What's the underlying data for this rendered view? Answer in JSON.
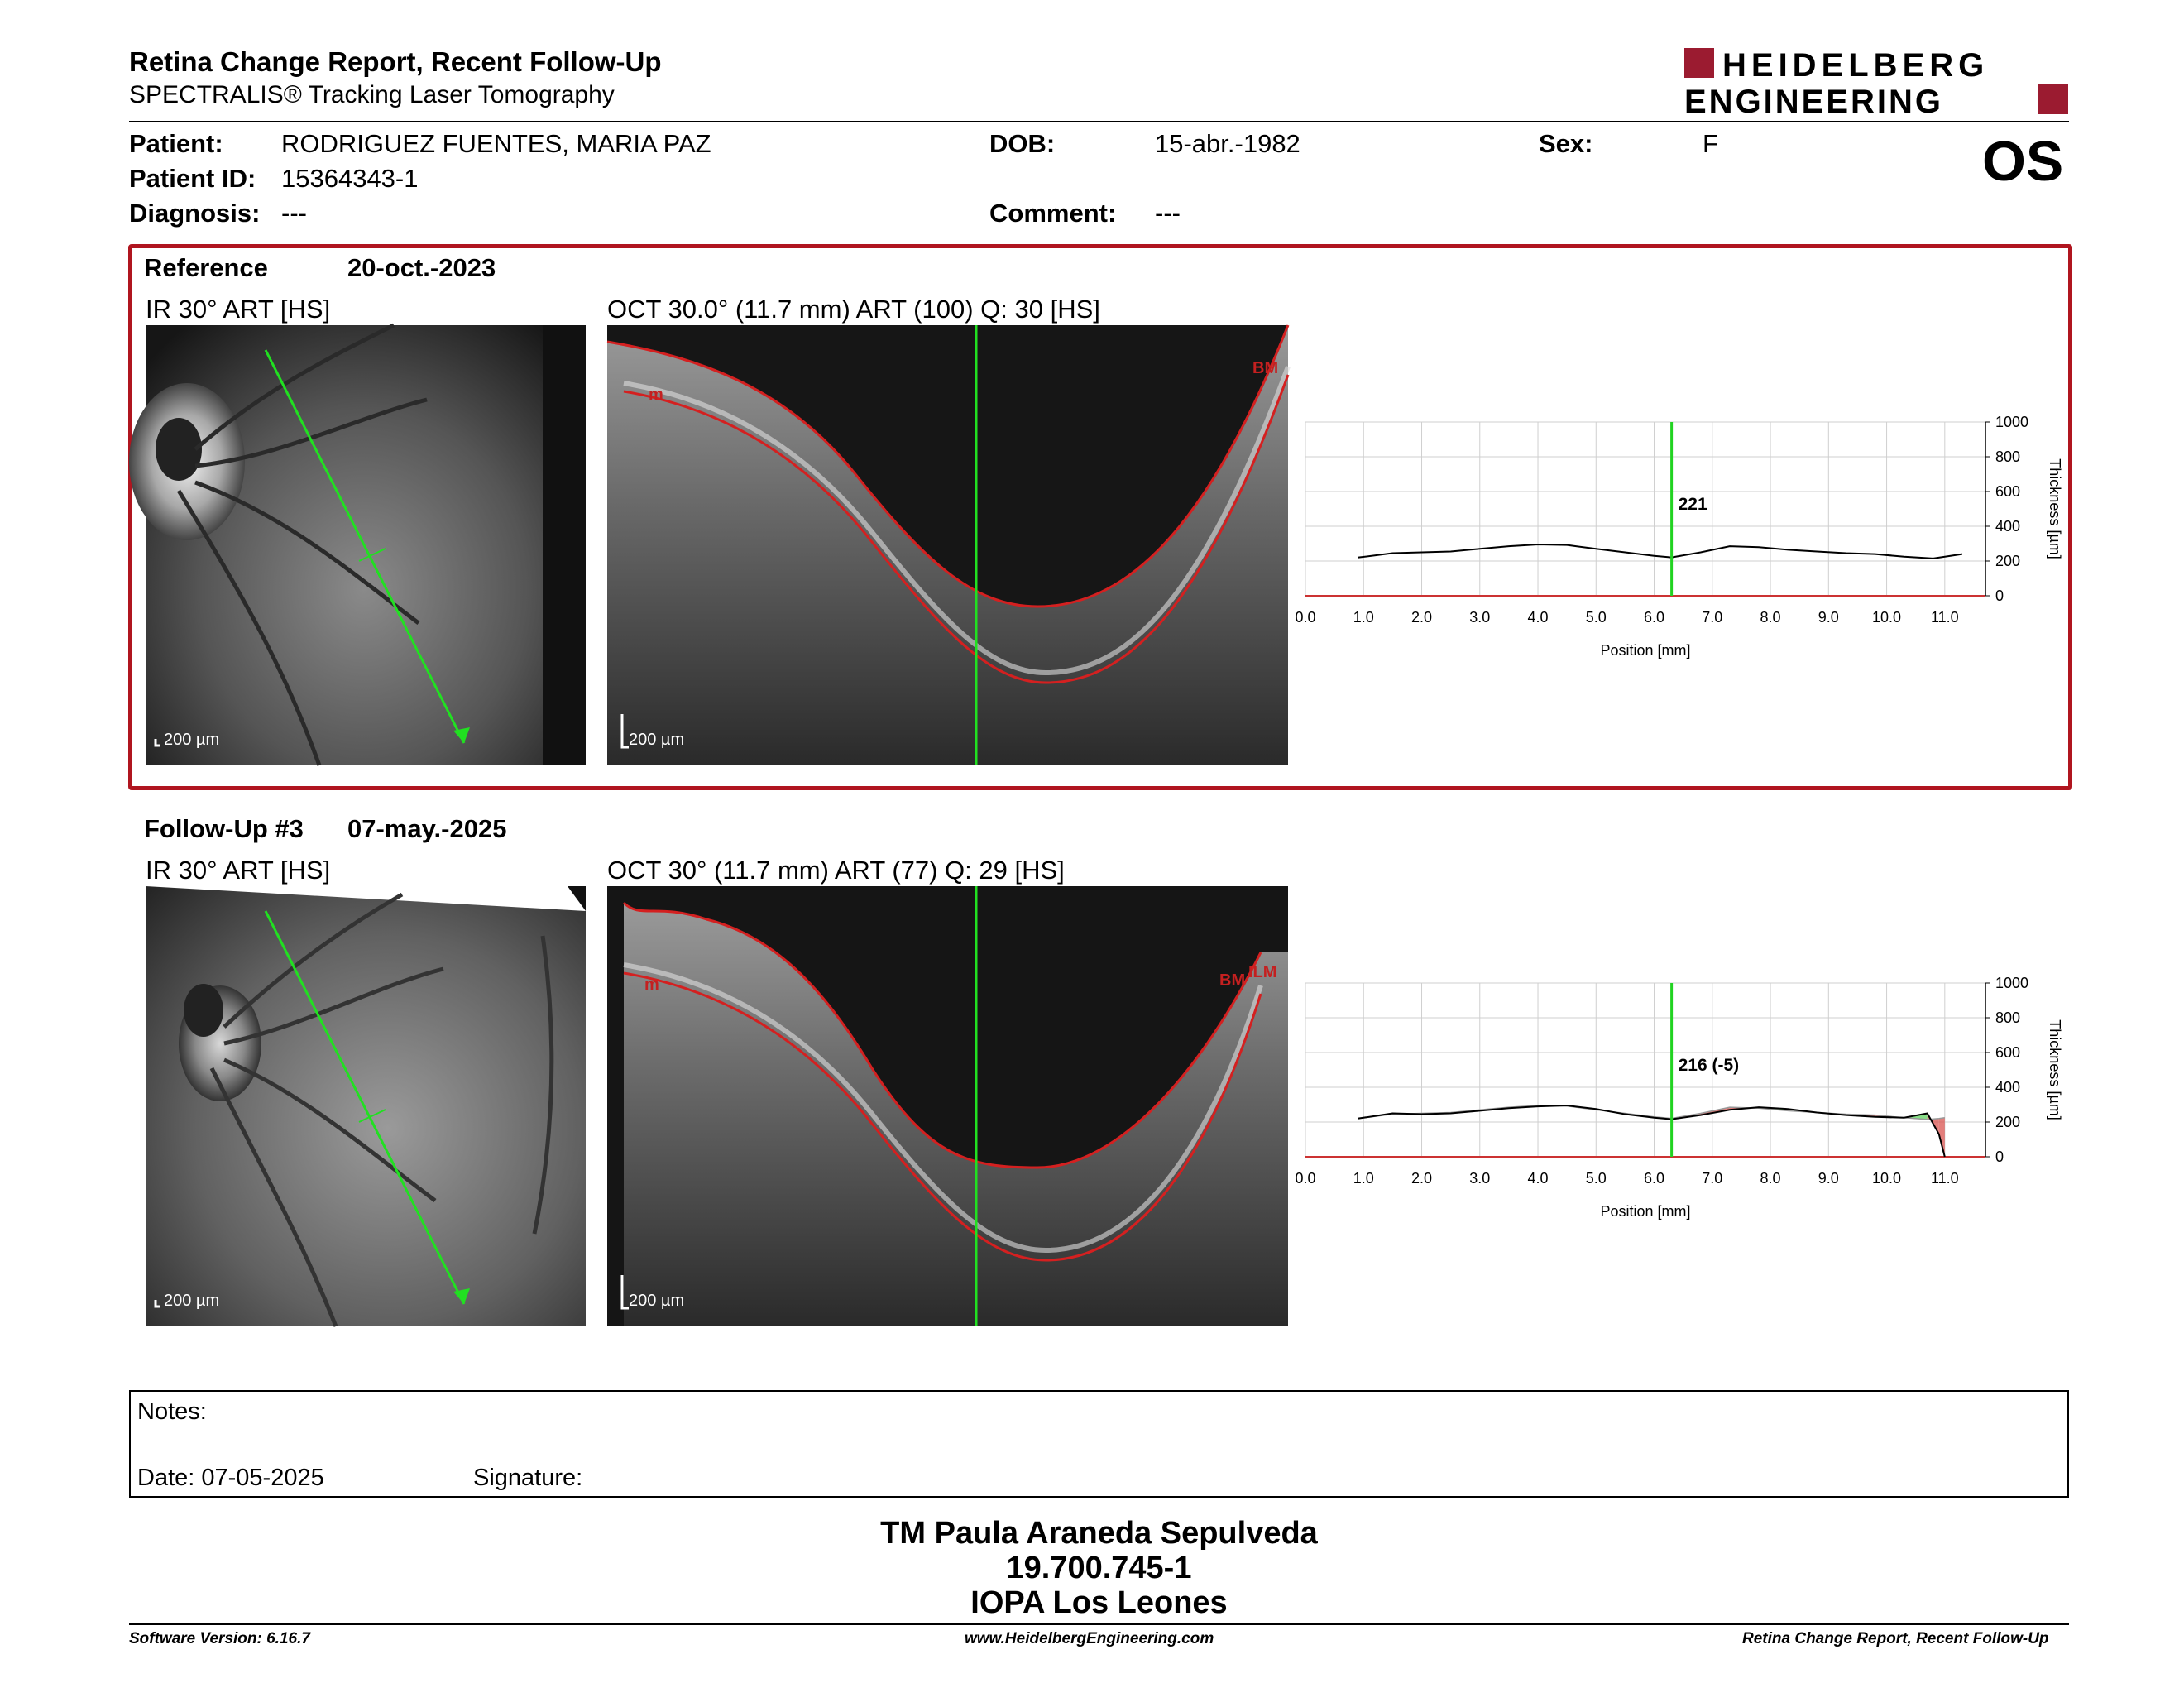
{
  "header": {
    "title": "Retina Change Report, Recent Follow-Up",
    "subtitle": "SPECTRALIS® Tracking Laser Tomography",
    "logo_line1": "HEIDELBERG",
    "logo_line2": "ENGINEERING",
    "eye": "OS",
    "brand_color": "#9b1b30"
  },
  "patient": {
    "name_label": "Patient:",
    "name": "RODRIGUEZ FUENTES, MARIA PAZ",
    "id_label": "Patient ID:",
    "id": "15364343-1",
    "diagnosis_label": "Diagnosis:",
    "diagnosis": "---",
    "dob_label": "DOB:",
    "dob": "15-abr.-1982",
    "comment_label": "Comment:",
    "comment": "---",
    "sex_label": "Sex:",
    "sex": "F"
  },
  "reference": {
    "label": "Reference",
    "date": "20-oct.-2023",
    "ir_title": "IR 30° ART [HS]",
    "oct_title": "OCT 30.0° (11.7 mm) ART (100) Q: 30 [HS]",
    "ir_scale": "200 µm",
    "oct_scale": "200 µm",
    "oct_tag_top": "BM",
    "oct_tag_left": "m",
    "box_color": "#b0151f"
  },
  "followup": {
    "label": "Follow-Up #3",
    "date": "07-may.-2025",
    "ir_title": "IR 30° ART [HS]",
    "oct_title": "OCT 30° (11.7 mm) ART (77) Q: 29 [HS]",
    "ir_scale": "200 µm",
    "oct_scale": "200 µm",
    "oct_tag_top": "ILM",
    "oct_tag_mid": "BM",
    "oct_tag_left": "m"
  },
  "chart_data": [
    {
      "type": "line",
      "x": [
        0.9,
        1.5,
        2.0,
        2.5,
        3.0,
        3.5,
        4.0,
        4.5,
        5.0,
        5.5,
        6.0,
        6.3,
        6.8,
        7.3,
        7.8,
        8.3,
        8.8,
        9.3,
        9.8,
        10.3,
        10.8,
        11.3
      ],
      "values": [
        220,
        245,
        250,
        255,
        270,
        285,
        295,
        292,
        270,
        250,
        230,
        221,
        250,
        285,
        280,
        265,
        255,
        245,
        240,
        225,
        215,
        240
      ],
      "marker_x": 6.3,
      "marker_label": "221",
      "xlabel": "Position [mm]",
      "ylabel": "Thickness [µm]",
      "xticks": [
        "0.0",
        "1.0",
        "2.0",
        "3.0",
        "4.0",
        "5.0",
        "6.0",
        "7.0",
        "8.0",
        "9.0",
        "10.0",
        "11.0"
      ],
      "yticks": [
        "0",
        "200",
        "400",
        "600",
        "800",
        "1000"
      ],
      "xlim": [
        0,
        11.7
      ],
      "ylim": [
        0,
        1000
      ],
      "grid": true
    },
    {
      "type": "line",
      "x": [
        0.9,
        1.5,
        2.0,
        2.5,
        3.0,
        3.5,
        4.0,
        4.5,
        5.0,
        5.5,
        6.0,
        6.3,
        6.8,
        7.3,
        7.8,
        8.3,
        8.8,
        9.3,
        9.8,
        10.3,
        10.7,
        10.9,
        11.0
      ],
      "values": [
        220,
        250,
        245,
        250,
        265,
        280,
        290,
        295,
        275,
        245,
        225,
        216,
        240,
        270,
        285,
        275,
        255,
        240,
        230,
        225,
        250,
        130,
        0
      ],
      "reference_values": [
        220,
        245,
        250,
        255,
        270,
        285,
        295,
        292,
        270,
        250,
        230,
        221,
        250,
        285,
        280,
        265,
        255,
        245,
        240,
        225,
        215,
        220,
        225
      ],
      "marker_x": 6.3,
      "marker_label": "216 (-5)",
      "xlabel": "Position [mm]",
      "ylabel": "Thickness [µm]",
      "xticks": [
        "0.0",
        "1.0",
        "2.0",
        "3.0",
        "4.0",
        "5.0",
        "6.0",
        "7.0",
        "8.0",
        "9.0",
        "10.0",
        "11.0"
      ],
      "yticks": [
        "0",
        "200",
        "400",
        "600",
        "800",
        "1000"
      ],
      "xlim": [
        0,
        11.7
      ],
      "ylim": [
        0,
        1000
      ],
      "grid": true,
      "increase_color": "#5fd35f",
      "decrease_color": "#d9534f"
    }
  ],
  "notes": {
    "label": "Notes:",
    "date_label": "Date: 07-05-2025",
    "signature_label": "Signature:"
  },
  "signer": {
    "name": "TM Paula Araneda Sepulveda",
    "id": "19.700.745-1",
    "org": "IOPA Los Leones"
  },
  "footer": {
    "version": "Software Version: 6.16.7",
    "url": "www.HeidelbergEngineering.com",
    "report": "Retina Change Report, Recent Follow-Up"
  }
}
